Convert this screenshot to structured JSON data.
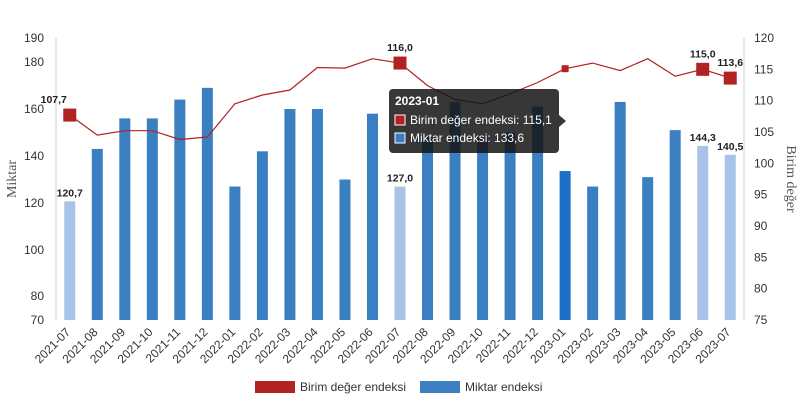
{
  "chart_data": {
    "type": "bar",
    "categories": [
      "2021-07",
      "2021-08",
      "2021-09",
      "2021-10",
      "2021-11",
      "2021-12",
      "2022-01",
      "2022-02",
      "2022-03",
      "2022-04",
      "2022-05",
      "2022-06",
      "2022-07",
      "2022-08",
      "2022-09",
      "2022-10",
      "2022-11",
      "2022-12",
      "2023-01",
      "2023-02",
      "2023-03",
      "2023-04",
      "2023-05",
      "2023-06",
      "2023-07"
    ],
    "series": [
      {
        "name": "Miktar endeksi",
        "type": "bar",
        "axis": "left",
        "color": "#3a7fc1",
        "highlight_color": "#a9c2e8",
        "active_color": "#1c6fc7",
        "values": [
          120.7,
          143,
          156,
          156,
          164,
          169,
          127,
          142,
          160,
          160,
          130,
          158,
          127.0,
          148,
          163,
          148,
          150,
          161,
          133.6,
          127,
          163,
          131,
          151,
          144.3,
          140.5
        ],
        "light_indices": [
          0,
          12,
          23,
          24
        ],
        "active_index": 18
      },
      {
        "name": "Birim değer endeksi",
        "type": "line",
        "axis": "right",
        "color": "#b22222",
        "values": [
          107.7,
          104.5,
          105.2,
          105.2,
          103.8,
          104.2,
          109.5,
          110.9,
          111.7,
          115.3,
          115.2,
          116.7,
          116.0,
          112.4,
          110.2,
          109.5,
          111.1,
          112.9,
          115.1,
          116.0,
          114.8,
          116.7,
          113.9,
          115.0,
          113.6
        ],
        "marker_indices": [
          0,
          12,
          18,
          23,
          24
        ]
      }
    ],
    "left_axis": {
      "title": "Miktar",
      "min": 70,
      "max": 190,
      "ticks": [
        70,
        80,
        100,
        120,
        140,
        160,
        180,
        190
      ]
    },
    "right_axis": {
      "title": "Birim değer",
      "min": 75,
      "max": 120,
      "ticks": [
        75,
        80,
        85,
        90,
        95,
        100,
        105,
        110,
        115,
        120
      ]
    },
    "bar_labels": [
      {
        "index": 0,
        "text": "120,7"
      },
      {
        "index": 12,
        "text": "127,0"
      },
      {
        "index": 23,
        "text": "144,3"
      },
      {
        "index": 24,
        "text": "140,5"
      }
    ],
    "line_labels": [
      {
        "index": 0,
        "text": "107,7"
      },
      {
        "index": 12,
        "text": "116,0"
      },
      {
        "index": 23,
        "text": "115,0"
      },
      {
        "index": 24,
        "text": "113,6"
      }
    ],
    "tooltip": {
      "title": "2023-01",
      "index": 18,
      "rows": [
        {
          "label": "Birim değer endeksi: 115,1",
          "color": "#b22222"
        },
        {
          "label": "Miktar endeksi: 133,6",
          "color": "#3a7fc1"
        }
      ]
    },
    "legend": {
      "position": "bottom",
      "items": [
        {
          "label": "Birim değer endeksi",
          "color": "#b22222"
        },
        {
          "label": "Miktar endeksi",
          "color": "#3a7fc1"
        }
      ]
    },
    "grid": false
  }
}
